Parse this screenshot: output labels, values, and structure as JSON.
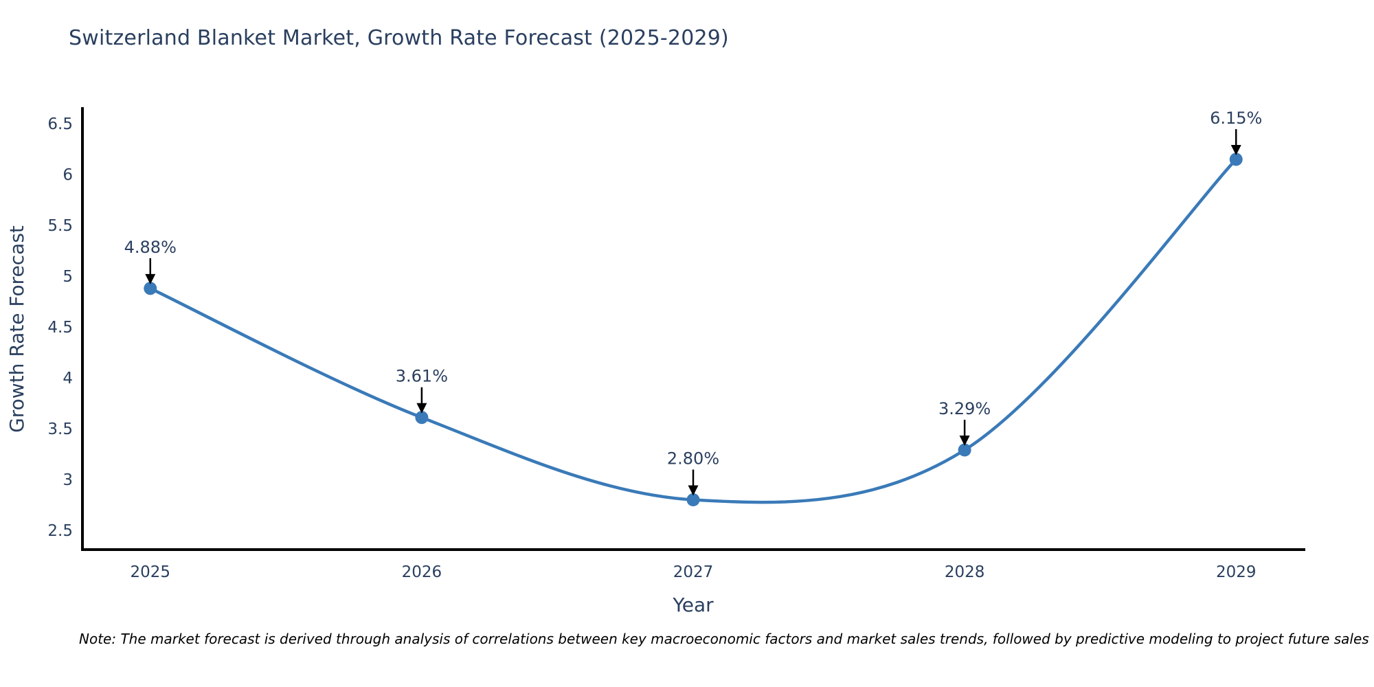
{
  "page": {
    "title": "Switzerland Blanket Market, Growth Rate Forecast (2025-2029)",
    "note": "Note: The market forecast is derived through analysis of correlations between key macroeconomic factors and market sales trends, followed by predictive modeling to project future sales"
  },
  "chart_data": {
    "type": "line",
    "title": "Switzerland Blanket Market, Growth Rate Forecast (2025-2029)",
    "xlabel": "Year",
    "ylabel": "Growth Rate Forecast",
    "categories": [
      2025,
      2026,
      2027,
      2028,
      2029
    ],
    "values": [
      4.88,
      3.61,
      2.8,
      3.29,
      6.15
    ],
    "point_labels": [
      "4.88%",
      "3.61%",
      "2.80%",
      "3.29%",
      "6.15%"
    ],
    "x_tick_labels": [
      "2025",
      "2026",
      "2027",
      "2028",
      "2029"
    ],
    "y_ticks": [
      2.5,
      3,
      3.5,
      4,
      4.5,
      5,
      5.5,
      6,
      6.5
    ],
    "y_tick_labels": [
      "2.5",
      "3",
      "3.5",
      "4",
      "4.5",
      "5",
      "5.5",
      "6",
      "6.5"
    ],
    "x_range": [
      2024.75,
      2029.25
    ],
    "y_range": [
      2.31,
      6.65
    ],
    "line_shape": "spline",
    "grid": false,
    "legend": "none",
    "colors": {
      "line": "#3a7ab8",
      "marker": "#3a7ab8",
      "axis_line": "#000000",
      "tick_text": "#2a3f5f",
      "axis_title_text": "#2a3f5f",
      "annotation_text": "#2a3f5f",
      "annotation_arrow": "#000000",
      "title_text": "#2a3f5f",
      "background": "#ffffff"
    }
  }
}
